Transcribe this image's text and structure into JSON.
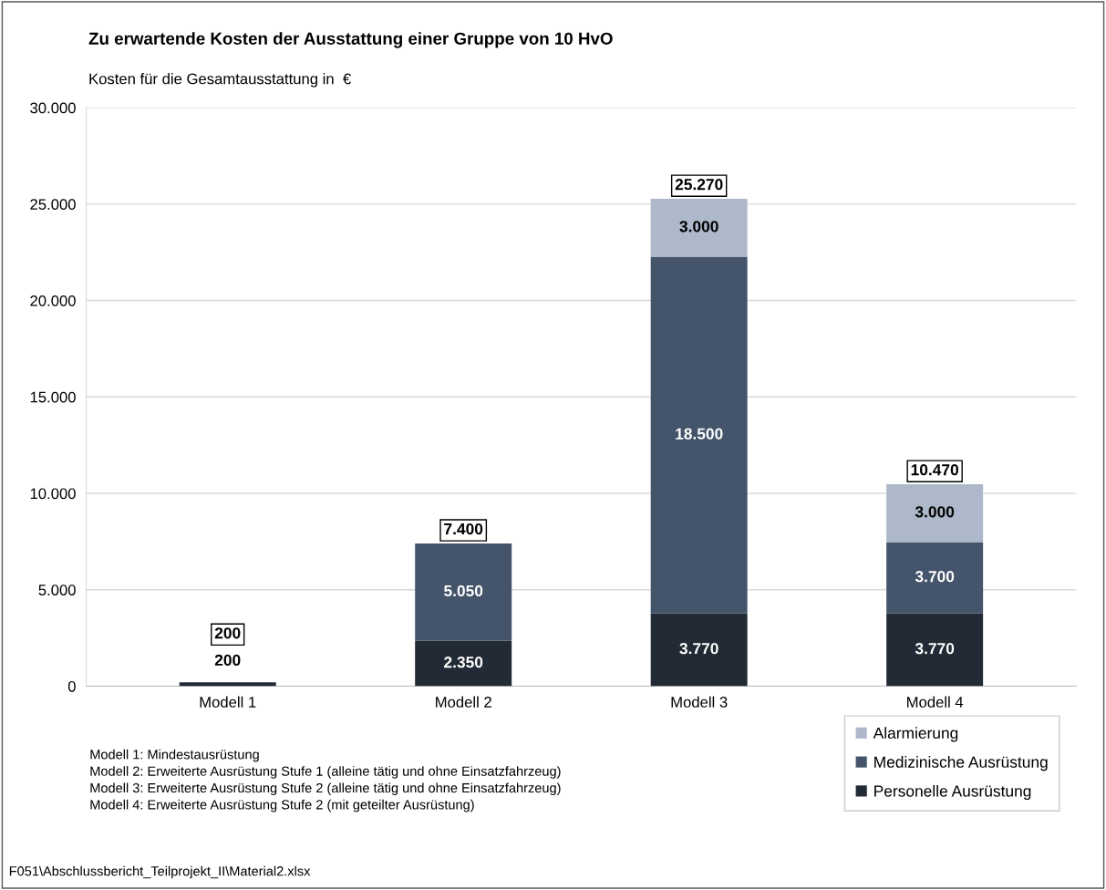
{
  "chart_data": {
    "type": "bar",
    "stacked": true,
    "title": "Zu erwartende Kosten der Ausstattung einer Gruppe von 10 HvO",
    "ylabel": "Kosten für die Gesamtausstattung in  €",
    "categories": [
      "Modell 1",
      "Modell 2",
      "Modell 3",
      "Modell 4"
    ],
    "series": [
      {
        "name": "Personelle Ausrüstung",
        "color": "#222a35",
        "values": [
          200,
          2350,
          3770,
          3770
        ],
        "value_labels": [
          "200",
          "2.350",
          "3.770",
          "3.770"
        ]
      },
      {
        "name": "Medizinische Ausrüstung",
        "color": "#44546a",
        "values": [
          0,
          5050,
          18500,
          3700
        ],
        "value_labels": [
          null,
          "5.050",
          "18.500",
          "3.700"
        ]
      },
      {
        "name": "Alarmierung",
        "color": "#adb9ca",
        "values": [
          0,
          0,
          3000,
          3000
        ],
        "value_labels": [
          null,
          null,
          "3.000",
          "3.000"
        ]
      }
    ],
    "totals": [
      "200",
      "7.400",
      "25.270",
      "10.470"
    ],
    "ylim": [
      0,
      30000
    ],
    "yticks": [
      {
        "value": 0,
        "label": "0"
      },
      {
        "value": 5000,
        "label": "5.000"
      },
      {
        "value": 10000,
        "label": "10.000"
      },
      {
        "value": 15000,
        "label": "15.000"
      },
      {
        "value": 20000,
        "label": "20.000"
      },
      {
        "value": 25000,
        "label": "25.000"
      },
      {
        "value": 30000,
        "label": "30.000"
      }
    ],
    "grid": "y",
    "legend": "bottom right",
    "annotations": [
      "Modell 1: Mindestausrüstung\nModell 2: Erweiterte Ausrüstung Stufe 1 (alleine tätig und ohne Einsatzfahrzeug)\nModell 3: Erweiterte Ausrüstung Stufe 2 (alleine tätig und ohne Einsatzfahrzeug)\nModell 4: Erweiterte Ausrüstung Stufe 2 (mit geteilter Ausrüstung)",
      "F051\\Abschlussbericht_Teilprojekt_II\\Material2.xlsx"
    ]
  }
}
